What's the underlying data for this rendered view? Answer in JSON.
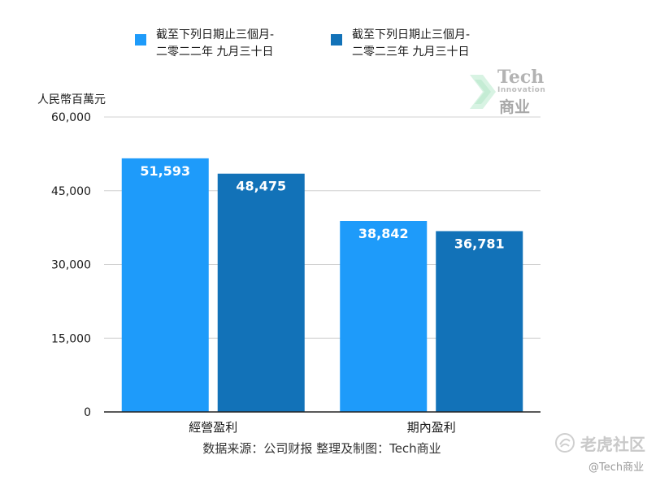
{
  "chart_data": {
    "type": "bar",
    "categories": [
      "經營盈利",
      "期內盈利"
    ],
    "series": [
      {
        "name": [
          "截至下列日期止三個月-",
          "二零二二年 九月三十日"
        ],
        "values": [
          51593,
          38842
        ],
        "labels": [
          "51,593",
          "38,842"
        ],
        "color": "#1e9bfa"
      },
      {
        "name": [
          "截至下列日期止三個月-",
          "二零二三年 九月三十日"
        ],
        "values": [
          48475,
          36781
        ],
        "labels": [
          "48,475",
          "36,781"
        ],
        "color": "#1272b8"
      }
    ],
    "ylabel": "人民幣百萬元",
    "ylim": [
      0,
      60000
    ],
    "yticks": [
      0,
      15000,
      30000,
      45000,
      60000
    ],
    "ytick_labels": [
      "0",
      "15,000",
      "30,000",
      "45,000",
      "60,000"
    ],
    "grid": true,
    "legend": "top"
  },
  "source_note": "数据来源：公司财报 整理及制图：Tech商业",
  "watermark_logo": {
    "line1": "Tech",
    "line2": "Innovation",
    "line3": "商业"
  },
  "watermark_corner": {
    "line1": "老虎社区",
    "line2": "@Tech商业"
  }
}
